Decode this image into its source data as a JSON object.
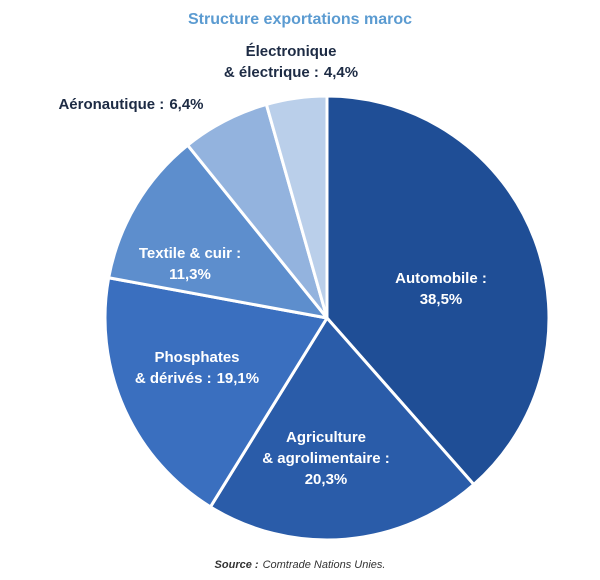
{
  "chart_data": {
    "type": "pie",
    "title": "Structure exportations maroc",
    "categories": [
      [
        "Automobile :"
      ],
      [
        "Agriculture",
        "& agrolimentaire :"
      ],
      [
        "Phosphates",
        "& dérivés :"
      ],
      [
        "Textile & cuir :"
      ],
      [
        "Aéronautique :"
      ],
      [
        "Électronique",
        "& électrique :"
      ]
    ],
    "values": [
      38.5,
      20.3,
      19.1,
      11.3,
      6.4,
      4.4
    ],
    "value_labels": [
      "38,5%",
      "20,3%",
      "19,1%",
      "11,3%",
      "6,4%",
      "4,4%"
    ],
    "colors": [
      "#1f4e96",
      "#2a5ca9",
      "#3a6fbf",
      "#5d8ecd",
      "#93b3de",
      "#bacfea"
    ],
    "source_label": "Source :",
    "source": "Comtrade Nations Unies."
  }
}
